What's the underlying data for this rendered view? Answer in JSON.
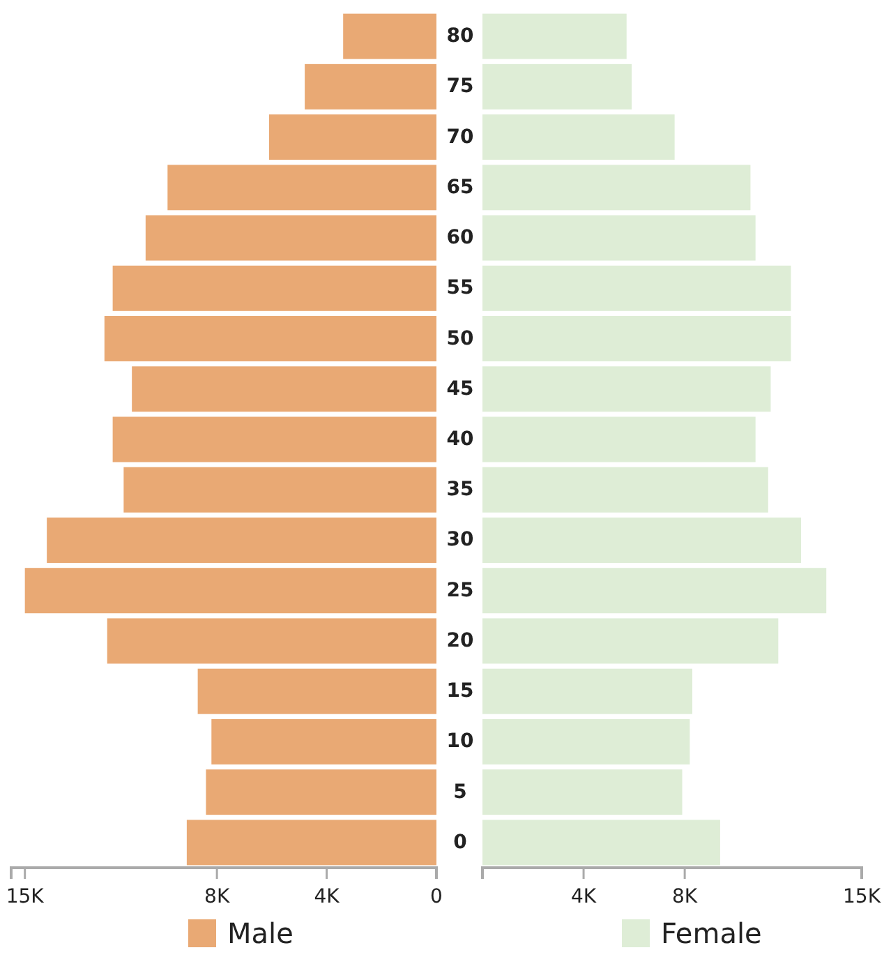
{
  "chart_data": [
    {
      "type": "bar",
      "orientation": "horizontal",
      "categories": [
        "80",
        "75",
        "70",
        "65",
        "60",
        "55",
        "50",
        "45",
        "40",
        "35",
        "30",
        "25",
        "20",
        "15",
        "10",
        "5",
        "0"
      ],
      "series": [
        {
          "name": "Male",
          "color": "#e9a974",
          "values": [
            3400,
            4800,
            6100,
            9800,
            10600,
            11800,
            12100,
            11100,
            11800,
            11400,
            14200,
            15000,
            12000,
            8700,
            8200,
            8400,
            9100
          ]
        }
      ],
      "xlim": [
        15500,
        0
      ],
      "xticks": [
        {
          "value": 15000,
          "label": "15K"
        },
        {
          "value": 8000,
          "label": "8K"
        },
        {
          "value": 4000,
          "label": "4K"
        },
        0
      ],
      "grid": false,
      "legend": "bottom"
    },
    {
      "type": "bar",
      "orientation": "horizontal",
      "categories": [
        null,
        null,
        null,
        null,
        null,
        null,
        null,
        null,
        null,
        null,
        null,
        null,
        null,
        null,
        null,
        null,
        null
      ],
      "series": [
        {
          "name": "Female",
          "color": "#deedd6",
          "values": [
            5700,
            5900,
            7600,
            10600,
            10800,
            12200,
            12200,
            11400,
            10800,
            11300,
            12600,
            13600,
            11700,
            8300,
            8200,
            7900,
            9400
          ]
        }
      ],
      "xlim": [
        0,
        15000
      ],
      "xticks": [
        {
          "value": 0,
          "label": null
        },
        {
          "value": 4000,
          "label": "4K"
        },
        {
          "value": 8000,
          "label": "8K"
        },
        {
          "value": 15000,
          "label": "15K"
        }
      ],
      "grid": false,
      "legend": "bottom"
    }
  ]
}
